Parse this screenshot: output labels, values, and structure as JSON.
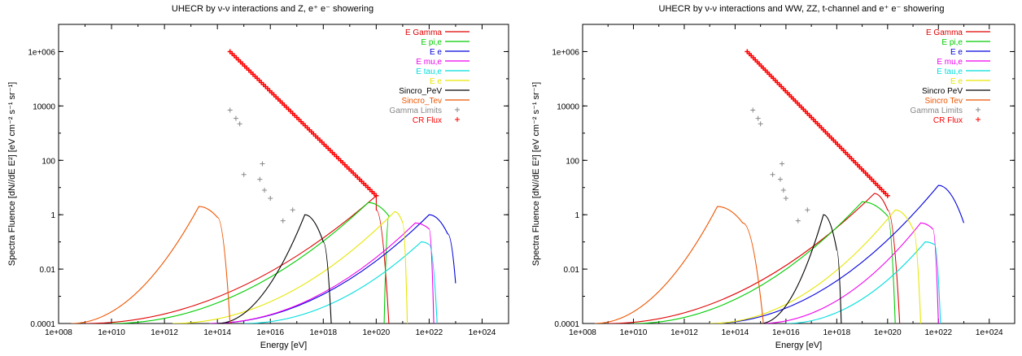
{
  "chart_data": [
    {
      "type": "line",
      "title": "UHECR by ν-ν interactions and Z, e⁺ e⁻ showering",
      "xlabel": "Energy [eV]",
      "ylabel": "Spectra Fluence [dN//dE E²] [eV cm⁻² s⁻¹ sr⁻¹]",
      "xscale": "log",
      "yscale": "log",
      "xlim": [
        100000000.0,
        1e+25
      ],
      "ylim": [
        0.0001,
        10000000.0
      ],
      "x_ticks": [
        "1e+008",
        "1e+010",
        "1e+012",
        "1e+014",
        "1e+016",
        "1e+018",
        "1e+020",
        "1e+022",
        "1e+024"
      ],
      "y_ticks": [
        "0.0001",
        "0.01",
        "1",
        "100",
        "10000",
        "1e+006"
      ],
      "legend_position": "top-right",
      "series": [
        {
          "name": "E Gamma",
          "color": "#e00000",
          "points": [
            [
              1000000000.0,
              0.0001
            ],
            [
              1e+20,
              5.0
            ],
            [
              1e+20,
              5.0
            ],
            [
              1e+20,
              1.5
            ],
            [
              3e+20,
              0.0001
            ]
          ]
        },
        {
          "name": "E pi,e",
          "color": "#00cc00",
          "points": [
            [
              10000000000.0,
              0.0001
            ],
            [
              5e+19,
              2.8
            ],
            [
              3e+20,
              0.9
            ],
            [
              2e+20,
              0.0001
            ]
          ]
        },
        {
          "name": "E e",
          "color": "#0000dd",
          "points": [
            [
              50000000000000.0,
              0.0001
            ],
            [
              1e+22,
              1.0
            ],
            [
              5e+22,
              0.2
            ],
            [
              1e+23,
              0.003
            ]
          ]
        },
        {
          "name": "E mu,e",
          "color": "#ee00ee",
          "points": [
            [
              50000000000000.0,
              0.0001
            ],
            [
              3e+21,
              0.5
            ],
            [
              1e+22,
              0.3
            ],
            [
              1.5e+22,
              0.0001
            ]
          ]
        },
        {
          "name": "E tau,e",
          "color": "#00dddd",
          "points": [
            [
              1000000000000000.0,
              0.0001
            ],
            [
              5e+21,
              0.1
            ],
            [
              1e+22,
              0.08
            ],
            [
              2e+22,
              0.0001
            ]
          ]
        },
        {
          "name": "E e",
          "color": "#e6e600",
          "points": [
            [
              2000000000000.0,
              0.0001
            ],
            [
              5e+20,
              1.3
            ],
            [
              1e+21,
              0.5
            ],
            [
              1.5e+21,
              0.0001
            ]
          ]
        },
        {
          "name": "Sincro_PeV",
          "color": "#000000",
          "points": [
            [
              100000000000000.0,
              0.0001
            ],
            [
              2e+17,
              1.0
            ],
            [
              2e+17,
              1.0
            ],
            [
              1e+18,
              0.1
            ],
            [
              2e+18,
              0.0001
            ]
          ]
        },
        {
          "name": "Sincro_Tev",
          "color": "#ee5500",
          "points": [
            [
              300000000.0,
              0.0001
            ],
            [
              20000000000000.0,
              2.0
            ],
            [
              20000000000000.0,
              2.0
            ],
            [
              100000000000000.0,
              0.8
            ],
            [
              300000000000000.0,
              0.0001
            ]
          ]
        }
      ],
      "scatter_series": [
        {
          "name": "Gamma Limits",
          "color": "#888888",
          "points": [
            [
              300000000000000.0,
              7000
            ],
            [
              500000000000000.0,
              3500
            ],
            [
              700000000000000.0,
              2200
            ],
            [
              1000000000000000.0,
              30
            ],
            [
              4000000000000000.0,
              20
            ],
            [
              5000000000000000.0,
              75
            ],
            [
              6000000000000000.0,
              8
            ],
            [
              1e+16,
              4
            ],
            [
              3e+16,
              0.6
            ],
            [
              7e+16,
              1.5
            ]
          ]
        },
        {
          "name": "CR Flux",
          "color": "#ff0000",
          "range": [
            [
              300000000000000.0,
              1000000.0
            ],
            [
              1e+20,
              5
            ]
          ]
        }
      ],
      "legend_labels": [
        "E Gamma",
        "E pi,e",
        "E e",
        "E mu,e",
        "E tau,e",
        "E e",
        "Sincro_PeV",
        "Sincro_Tev",
        "Gamma Limits",
        "CR Flux"
      ]
    },
    {
      "type": "line",
      "title": "UHECR by ν-ν interactions and WW, ZZ, t-channel and e⁺ e⁻ showering",
      "xlabel": "Energy [eV]",
      "ylabel": "Spectra Fluence [dN//dE E²] [eV cm⁻² s⁻¹ sr⁻¹]",
      "xscale": "log",
      "yscale": "log",
      "xlim": [
        100000000.0,
        1e+25
      ],
      "ylim": [
        0.0001,
        10000000.0
      ],
      "x_ticks": [
        "1e+008",
        "1e+010",
        "1e+012",
        "1e+014",
        "1e+016",
        "1e+018",
        "1e+020",
        "1e+022",
        "1e+024"
      ],
      "y_ticks": [
        "0.0001",
        "0.01",
        "1",
        "100",
        "10000",
        "1e+006"
      ],
      "legend_position": "top-right",
      "series": [
        {
          "name": "E Gamma",
          "color": "#e00000",
          "points": [
            [
              1000000000.0,
              0.0001
            ],
            [
              3e+19,
              6.0
            ],
            [
              3e+19,
              6.0
            ],
            [
              1e+20,
              1.5
            ],
            [
              3e+20,
              0.0001
            ]
          ]
        },
        {
          "name": "E pi,e",
          "color": "#00cc00",
          "points": [
            [
              10000000000.0,
              0.0001
            ],
            [
              1e+19,
              3.0
            ],
            [
              1e+20,
              0.9
            ],
            [
              2e+20,
              0.0001
            ]
          ]
        },
        {
          "name": "E e",
          "color": "#0000dd",
          "points": [
            [
              10000000000000.0,
              0.0001
            ],
            [
              1e+22,
              12
            ],
            [
              1e+22,
              12
            ],
            [
              1e+23,
              0.5
            ]
          ]
        },
        {
          "name": "E mu,e",
          "color": "#ee00ee",
          "points": [
            [
              1000000000000000.0,
              0.0001
            ],
            [
              2e+21,
              0.5
            ],
            [
              6e+21,
              0.3
            ],
            [
              1e+22,
              0.0001
            ]
          ]
        },
        {
          "name": "E tau,e",
          "color": "#00dddd",
          "points": [
            [
              1e+16,
              0.0001
            ],
            [
              3e+21,
              0.1
            ],
            [
              7e+21,
              0.08
            ],
            [
              1.2e+22,
              0.0001
            ]
          ]
        },
        {
          "name": "E e",
          "color": "#e6e600",
          "points": [
            [
              10000000000000.0,
              0.0001
            ],
            [
              2e+20,
              1.5
            ],
            [
              1e+21,
              0.3
            ],
            [
              2e+21,
              0.0001
            ]
          ]
        },
        {
          "name": "Sincro PeV",
          "color": "#000000",
          "points": [
            [
              1000000000000000.0,
              0.0001
            ],
            [
              3e+17,
              1.0
            ],
            [
              3e+17,
              1.0
            ],
            [
              1e+18,
              0.05
            ],
            [
              1.5e+18,
              0.0001
            ]
          ]
        },
        {
          "name": "Sincro Tev",
          "color": "#ee5500",
          "points": [
            [
              300000000.0,
              0.0001
            ],
            [
              20000000000000.0,
              2.0
            ],
            [
              20000000000000.0,
              2.0
            ],
            [
              200000000000000.0,
              0.5
            ],
            [
              1300000000000000.0,
              0.0001
            ]
          ]
        }
      ],
      "scatter_series": [
        {
          "name": "Gamma Limits",
          "color": "#888888",
          "points": [
            [
              500000000000000.0,
              7000
            ],
            [
              800000000000000.0,
              3500
            ],
            [
              1000000000000000.0,
              2200
            ],
            [
              3000000000000000.0,
              30
            ],
            [
              6000000000000000.0,
              20
            ],
            [
              7000000000000000.0,
              75
            ],
            [
              8000000000000000.0,
              8
            ],
            [
              1e+16,
              4
            ],
            [
              3e+16,
              0.6
            ],
            [
              7e+16,
              1.5
            ]
          ]
        },
        {
          "name": "CR Flux",
          "color": "#ff0000",
          "range": [
            [
              300000000000000.0,
              1000000.0
            ],
            [
              1e+20,
              5
            ]
          ]
        }
      ],
      "legend_labels": [
        "E Gamma",
        "E pi,e",
        "E e",
        "E mu,e",
        "E tau,e",
        "E e",
        "Sincro PeV",
        "Sincro Tev",
        "Gamma Limits",
        "CR Flux"
      ]
    }
  ]
}
